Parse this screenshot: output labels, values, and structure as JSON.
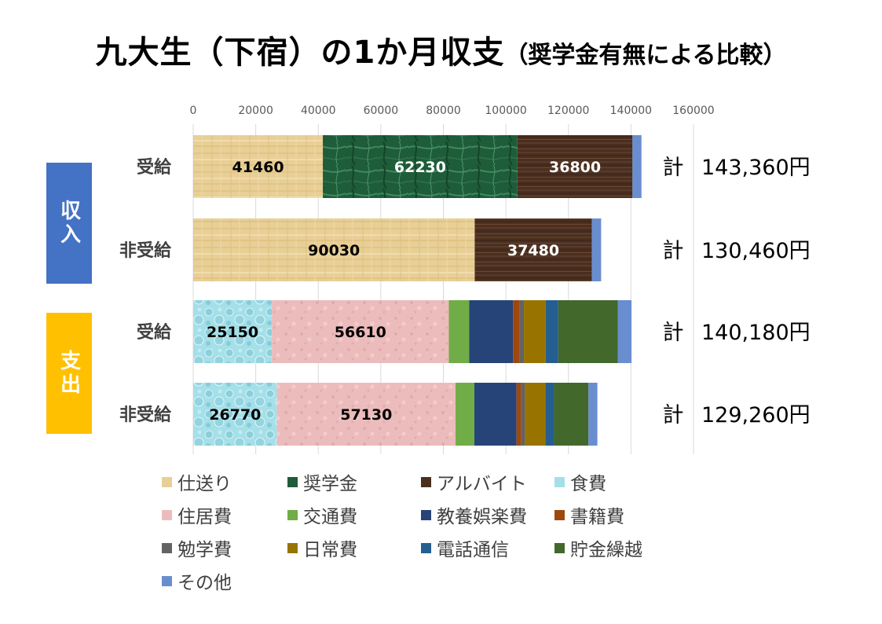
{
  "title": {
    "main": "九大生（下宿）の1か月収支",
    "sub": "（奨学金有無による比較）"
  },
  "groups": {
    "income": "収入",
    "expense": "支出"
  },
  "total_prefix": "計",
  "chart_data": {
    "type": "bar",
    "orientation": "horizontal",
    "stacked": true,
    "x_axis": {
      "position": "top",
      "range": [
        0,
        160000
      ],
      "ticks": [
        "0",
        "20000",
        "40000",
        "60000",
        "80000",
        "100000",
        "120000",
        "140000",
        "160000"
      ],
      "grid": true
    },
    "categories": [
      {
        "label": "受給",
        "group": "収入",
        "total": "143,360円"
      },
      {
        "label": "非受給",
        "group": "収入",
        "total": "130,460円"
      },
      {
        "label": "受給",
        "group": "支出",
        "total": "140,180円"
      },
      {
        "label": "非受給",
        "group": "支出",
        "total": "129,260円"
      }
    ],
    "series": [
      {
        "name": "仕送り",
        "color": "#e8cf96",
        "pattern": "papyrus",
        "values": [
          41460,
          90030,
          0,
          0
        ]
      },
      {
        "name": "奨学金",
        "color": "#1e5c3a",
        "pattern": "green-marble",
        "values": [
          62230,
          0,
          0,
          0
        ]
      },
      {
        "name": "アルバイト",
        "color": "#4a2f20",
        "pattern": "wood",
        "values": [
          36800,
          37480,
          0,
          0
        ]
      },
      {
        "name": "食費",
        "color": "#a5dfe8",
        "pattern": "water-droplets",
        "values": [
          0,
          0,
          25150,
          26770
        ]
      },
      {
        "name": "住居費",
        "color": "#ecbcbc",
        "pattern": "pink-tissue",
        "values": [
          0,
          0,
          56610,
          57130
        ]
      },
      {
        "name": "交通費",
        "color": "#70ad47",
        "values": [
          0,
          0,
          6500,
          6000
        ]
      },
      {
        "name": "教養娯楽費",
        "color": "#264478",
        "values": [
          0,
          0,
          14000,
          13500
        ]
      },
      {
        "name": "書籍費",
        "color": "#9e480e",
        "values": [
          0,
          0,
          2000,
          1500
        ]
      },
      {
        "name": "勉学費",
        "color": "#636363",
        "values": [
          0,
          0,
          1500,
          1200
        ]
      },
      {
        "name": "日常費",
        "color": "#997300",
        "values": [
          0,
          0,
          7000,
          6500
        ]
      },
      {
        "name": "電話通信",
        "color": "#255e91",
        "values": [
          0,
          0,
          4000,
          2800
        ]
      },
      {
        "name": "貯金繰越",
        "color": "#43682b",
        "values": [
          0,
          0,
          19000,
          11000
        ]
      },
      {
        "name": "その他",
        "color": "#698ed0",
        "values": [
          2870,
          2950,
          4420,
          2860
        ]
      }
    ],
    "data_labels": [
      {
        "bar": 0,
        "series": "仕送り",
        "text": "41460"
      },
      {
        "bar": 0,
        "series": "奨学金",
        "text": "62230"
      },
      {
        "bar": 0,
        "series": "アルバイト",
        "text": "36800"
      },
      {
        "bar": 1,
        "series": "仕送り",
        "text": "90030"
      },
      {
        "bar": 1,
        "series": "アルバイト",
        "text": "37480"
      },
      {
        "bar": 2,
        "series": "食費",
        "text": "25150"
      },
      {
        "bar": 2,
        "series": "住居費",
        "text": "56610"
      },
      {
        "bar": 3,
        "series": "食費",
        "text": "26770"
      },
      {
        "bar": 3,
        "series": "住居費",
        "text": "57130"
      }
    ]
  }
}
